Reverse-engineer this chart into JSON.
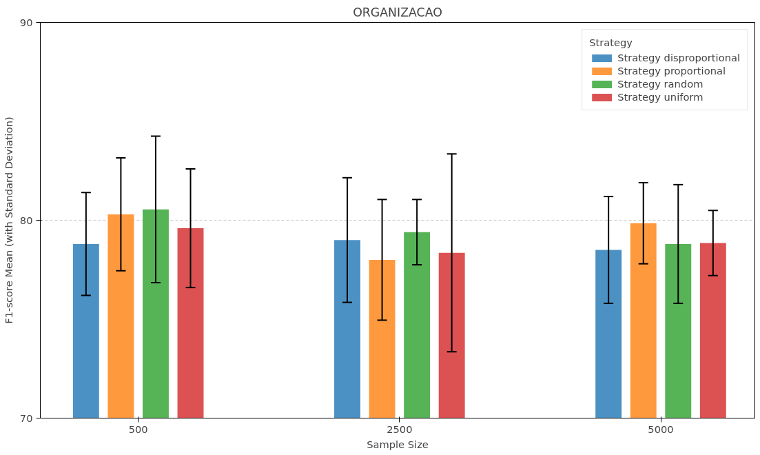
{
  "chart_data": {
    "type": "bar",
    "title": "ORGANIZACAO",
    "xlabel": "Sample Size",
    "ylabel": "F1-score Mean (with Standard Deviation)",
    "legend_title": "Strategy",
    "categories": [
      "500",
      "2500",
      "5000"
    ],
    "series": [
      {
        "name": "Strategy disproportional",
        "color": "#4c91c3",
        "values": [
          78.8,
          79.0,
          78.5
        ],
        "errors": [
          2.6,
          3.15,
          2.7
        ]
      },
      {
        "name": "Strategy proportional",
        "color": "#ff993e",
        "values": [
          80.3,
          78.0,
          79.85
        ],
        "errors": [
          2.85,
          3.05,
          2.05
        ]
      },
      {
        "name": "Strategy random",
        "color": "#56b356",
        "values": [
          80.55,
          79.4,
          78.8
        ],
        "errors": [
          3.7,
          1.65,
          3.0
        ]
      },
      {
        "name": "Strategy uniform",
        "color": "#dc5152",
        "values": [
          79.6,
          78.35,
          78.85
        ],
        "errors": [
          3.0,
          5.0,
          1.65
        ]
      }
    ],
    "ylim": [
      70,
      90
    ],
    "yticks": [
      70,
      80,
      90
    ],
    "grid": "y",
    "legend": "top right"
  }
}
